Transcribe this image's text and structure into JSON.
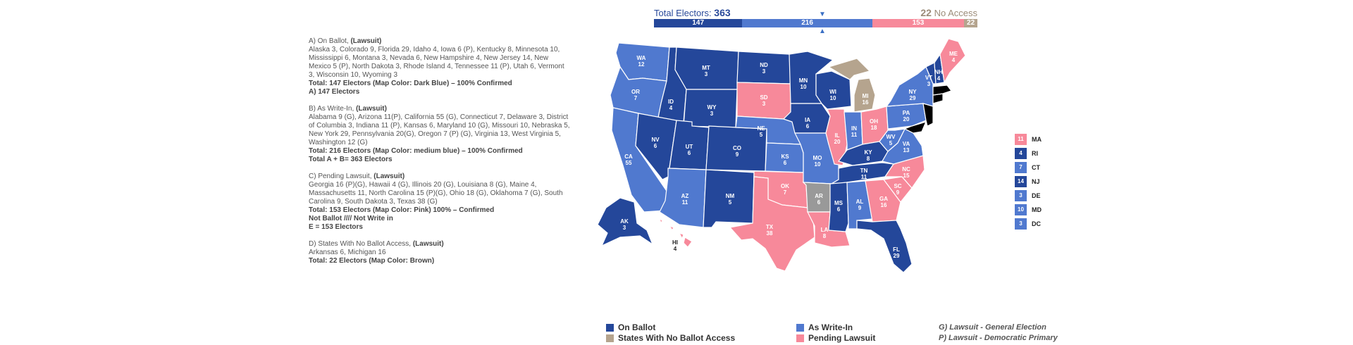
{
  "colors": {
    "on_ballot": "#24479a",
    "write_in": "#5079cf",
    "pending": "#f7899a",
    "no_access": "#b5a48e",
    "arkansas_gray": "#999999"
  },
  "header": {
    "total_label": "Total Electors:",
    "total_value": "363",
    "no_access_value": "22",
    "no_access_label": "No Access",
    "bar": [
      {
        "label": "147",
        "value": 147,
        "color": "#24479a"
      },
      {
        "label": "216",
        "value": 216,
        "color": "#5079cf"
      },
      {
        "label": "153",
        "value": 153,
        "color": "#f7899a"
      },
      {
        "label": "22",
        "value": 22,
        "color": "#b5a48e"
      }
    ]
  },
  "notes": {
    "a_title": "A) On Ballot, ",
    "a_lawsuit": "(Lawsuit)",
    "a_body": "Alaska 3, Colorado 9, Florida 29, Idaho 4, Iowa 6 (P), Kentucky 8, Minnesota 10, Mississippi 6, Montana 3, Nevada 6, New Hampshire 4, New Jersey 14, New Mexico 5 (P), North Dakota 3, Rhode Island 4, Tennessee 11 (P), Utah 6, Vermont 3, Wisconsin 10, Wyoming 3",
    "a_total": "Total: 147 Electors (Map Color: Dark Blue) – 100%  Confirmed",
    "a_summary": "A) 147 Electors",
    "b_title": "B) As Write-In, ",
    "b_lawsuit": "(Lawsuit)",
    "b_body": "Alabama 9 (G), Arizona 11(P), California 55 (G), Connecticut 7, Delaware 3, District of Columbia 3, Indiana 11 (P), Kansas 6, Maryland 10 (G), Missouri 10, Nebraska 5, New York 29, Pennsylvania 20(G), Oregon 7 (P) (G), Virginia 13, West Virginia 5, Washington 12 (G)",
    "b_total": "Total: 216 Electors (Map Color: medium blue) – 100% Confirmed",
    "b_summary": "Total A + B= 363 Electors",
    "c_title": "C) Pending Lawsuit, ",
    "c_lawsuit": "(Lawsuit)",
    "c_body": "Georgia 16 (P)(G), Hawaii 4 (G), Illinois 20 (G), Louisiana 8 (G), Maine 4, Massachusetts 11, North Carolina 15 (P)(G), Ohio 18 (G), Oklahoma 7 (G), South Carolina 9, South Dakota 3, Texas 38 (G)",
    "c_total": "Total: 153 Electors (Map Color: Pink) 100% – Confirmed",
    "c_note": "Not  Ballot  //// Not Write in",
    "c_summary": "E = 153 Electors",
    "d_title": "D) States With No Ballot Access, ",
    "d_lawsuit": "(Lawsuit)",
    "d_body": "Arkansas 6, Michigan 16",
    "d_total": "Total: 22 Electors (Map Color: Brown)"
  },
  "states": [
    {
      "abbr": "WA",
      "ev": "12",
      "status": "write_in"
    },
    {
      "abbr": "OR",
      "ev": "7",
      "status": "write_in"
    },
    {
      "abbr": "CA",
      "ev": "55",
      "status": "write_in"
    },
    {
      "abbr": "ID",
      "ev": "4",
      "status": "on_ballot"
    },
    {
      "abbr": "NV",
      "ev": "6",
      "status": "on_ballot"
    },
    {
      "abbr": "MT",
      "ev": "3",
      "status": "on_ballot"
    },
    {
      "abbr": "WY",
      "ev": "3",
      "status": "on_ballot"
    },
    {
      "abbr": "UT",
      "ev": "6",
      "status": "on_ballot"
    },
    {
      "abbr": "AZ",
      "ev": "11",
      "status": "write_in"
    },
    {
      "abbr": "CO",
      "ev": "9",
      "status": "on_ballot"
    },
    {
      "abbr": "NM",
      "ev": "5",
      "status": "on_ballot"
    },
    {
      "abbr": "ND",
      "ev": "3",
      "status": "on_ballot"
    },
    {
      "abbr": "SD",
      "ev": "3",
      "status": "pending"
    },
    {
      "abbr": "NE",
      "ev": "5",
      "status": "write_in"
    },
    {
      "abbr": "KS",
      "ev": "6",
      "status": "write_in"
    },
    {
      "abbr": "OK",
      "ev": "7",
      "status": "pending"
    },
    {
      "abbr": "TX",
      "ev": "38",
      "status": "pending"
    },
    {
      "abbr": "MN",
      "ev": "10",
      "status": "on_ballot"
    },
    {
      "abbr": "IA",
      "ev": "6",
      "status": "on_ballot"
    },
    {
      "abbr": "MO",
      "ev": "10",
      "status": "write_in"
    },
    {
      "abbr": "AR",
      "ev": "6",
      "status": "arkansas_gray"
    },
    {
      "abbr": "LA",
      "ev": "8",
      "status": "pending"
    },
    {
      "abbr": "WI",
      "ev": "10",
      "status": "on_ballot"
    },
    {
      "abbr": "IL",
      "ev": "20",
      "status": "pending"
    },
    {
      "abbr": "MI",
      "ev": "16",
      "status": "no_access"
    },
    {
      "abbr": "IN",
      "ev": "11",
      "status": "write_in"
    },
    {
      "abbr": "OH",
      "ev": "18",
      "status": "pending"
    },
    {
      "abbr": "KY",
      "ev": "8",
      "status": "on_ballot"
    },
    {
      "abbr": "TN",
      "ev": "11",
      "status": "on_ballot"
    },
    {
      "abbr": "MS",
      "ev": "6",
      "status": "on_ballot"
    },
    {
      "abbr": "AL",
      "ev": "9",
      "status": "write_in"
    },
    {
      "abbr": "GA",
      "ev": "16",
      "status": "pending"
    },
    {
      "abbr": "FL",
      "ev": "29",
      "status": "on_ballot"
    },
    {
      "abbr": "SC",
      "ev": "9",
      "status": "pending"
    },
    {
      "abbr": "NC",
      "ev": "15",
      "status": "pending"
    },
    {
      "abbr": "VA",
      "ev": "13",
      "status": "write_in"
    },
    {
      "abbr": "WV",
      "ev": "5",
      "status": "write_in"
    },
    {
      "abbr": "PA",
      "ev": "20",
      "status": "write_in"
    },
    {
      "abbr": "NY",
      "ev": "29",
      "status": "write_in"
    },
    {
      "abbr": "VT",
      "ev": "3",
      "status": "on_ballot"
    },
    {
      "abbr": "NH",
      "ev": "4",
      "status": "on_ballot"
    },
    {
      "abbr": "ME",
      "ev": "4",
      "status": "pending"
    },
    {
      "abbr": "AK",
      "ev": "3",
      "status": "on_ballot"
    },
    {
      "abbr": "HI",
      "ev": "4",
      "status": "pending"
    }
  ],
  "small_states": [
    {
      "abbr": "MA",
      "ev": "11",
      "color": "#f7899a"
    },
    {
      "abbr": "RI",
      "ev": "4",
      "color": "#24479a"
    },
    {
      "abbr": "CT",
      "ev": "7",
      "color": "#5079cf"
    },
    {
      "abbr": "NJ",
      "ev": "14",
      "color": "#24479a"
    },
    {
      "abbr": "DE",
      "ev": "3",
      "color": "#5079cf"
    },
    {
      "abbr": "MD",
      "ev": "10",
      "color": "#5079cf"
    },
    {
      "abbr": "DC",
      "ev": "3",
      "color": "#5079cf"
    }
  ],
  "legend": {
    "on_ballot": "On Ballot",
    "write_in": "As Write-In",
    "no_access": "States With No Ballot Access",
    "pending": "Pending Lawsuit",
    "note_g": "G) Lawsuit - General Election",
    "note_p": "P) Lawsuit - Democratic Primary"
  }
}
